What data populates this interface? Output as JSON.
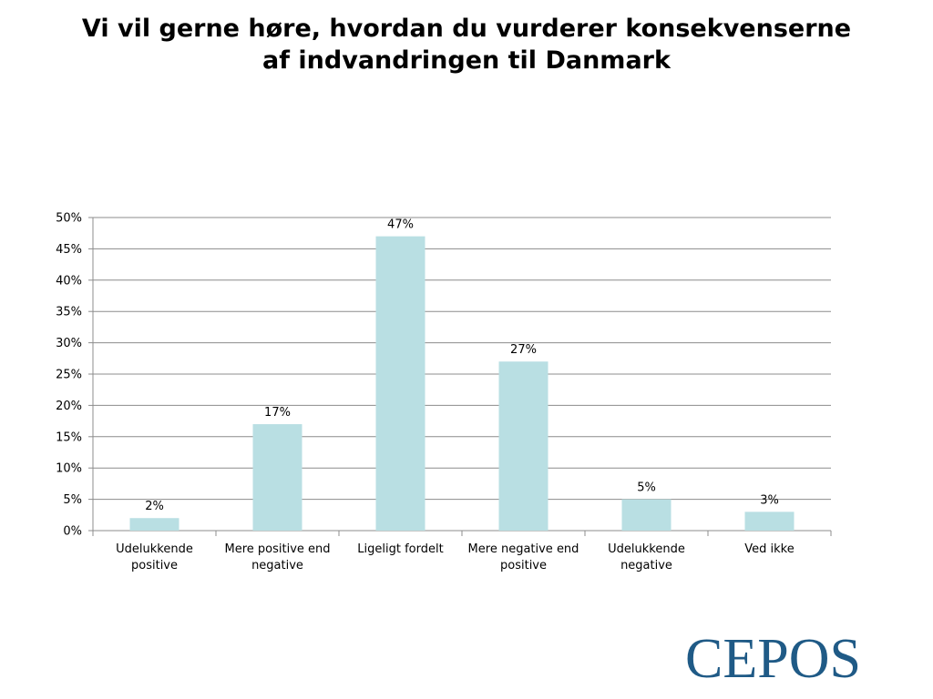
{
  "slide": {
    "title_line1": "Vi vil gerne høre, hvordan du vurderer konsekvenserne",
    "title_line2": "af indvandringen til Danmark"
  },
  "logo": {
    "text": "CEPOS",
    "color": "#1f5a86"
  },
  "chart_data": {
    "type": "bar",
    "title": "",
    "xlabel": "",
    "ylabel": "",
    "categories": [
      [
        "Udelukkende",
        "positive"
      ],
      [
        "Mere positive end",
        "negative"
      ],
      [
        "Ligeligt fordelt"
      ],
      [
        "Mere negative end",
        "positive"
      ],
      [
        "Udelukkende",
        "negative"
      ],
      [
        "Ved ikke"
      ]
    ],
    "values": [
      2,
      17,
      47,
      27,
      5,
      3
    ],
    "value_labels": [
      "2%",
      "17%",
      "47%",
      "27%",
      "5%",
      "3%"
    ],
    "ylim": [
      0,
      50
    ],
    "yticks": [
      0,
      5,
      10,
      15,
      20,
      25,
      30,
      35,
      40,
      45,
      50
    ],
    "ytick_labels": [
      "0%",
      "5%",
      "10%",
      "15%",
      "20%",
      "25%",
      "30%",
      "35%",
      "40%",
      "45%",
      "50%"
    ],
    "grid": true,
    "legend": "none",
    "bar_color": "#b9dfe3",
    "grid_color": "#8c8c8c"
  }
}
